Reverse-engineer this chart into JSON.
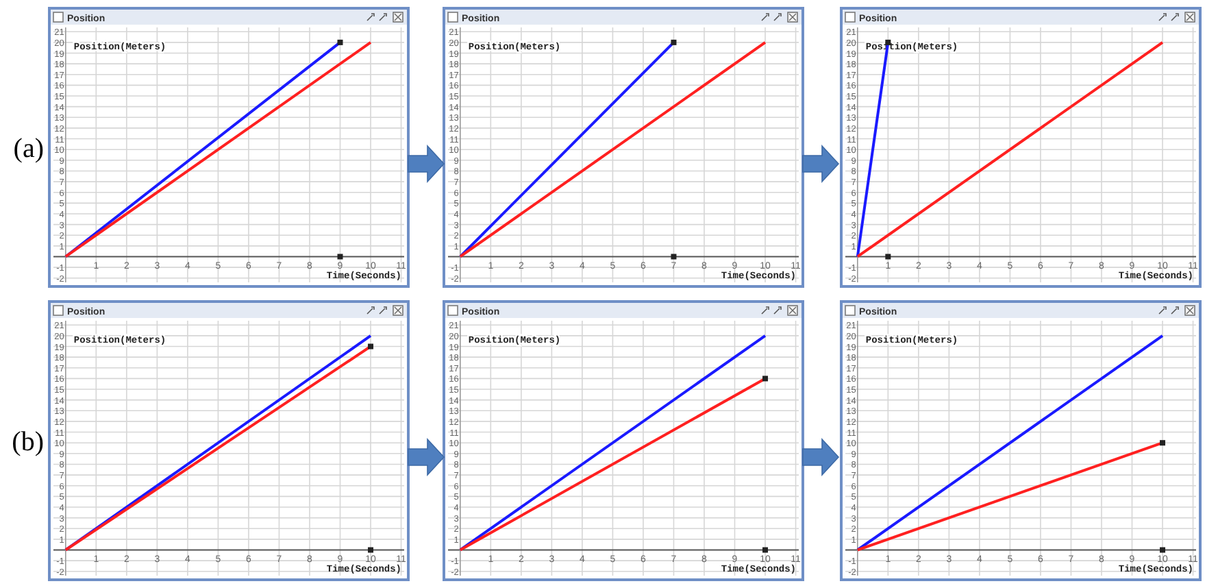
{
  "chart_data": [
    {
      "type": "line",
      "title": "Position",
      "xlabel": "Time(Seconds)",
      "ylabel": "Position(Meters)",
      "annotations": [
        "(a)"
      ],
      "xlim": [
        -0.4,
        11.1
      ],
      "ylim": [
        -2.4,
        21.4
      ],
      "xticks": [
        1,
        2,
        3,
        4,
        5,
        6,
        7,
        8,
        9,
        10,
        11
      ],
      "yticks": [
        -2,
        -1,
        1,
        2,
        3,
        4,
        5,
        6,
        7,
        8,
        9,
        10,
        11,
        12,
        13,
        14,
        15,
        16,
        17,
        18,
        19,
        20,
        21
      ],
      "grid": true,
      "line_style": "solid",
      "series": [
        {
          "type": "line",
          "color": "#1a1aff",
          "x": [
            0,
            9
          ],
          "values": [
            0,
            20
          ],
          "marker": "none"
        },
        {
          "type": "line",
          "color": "#ff2020",
          "x": [
            0,
            10
          ],
          "values": [
            0,
            20
          ],
          "marker": "none"
        },
        {
          "type": "scatter",
          "color": "#222222",
          "x": [
            9,
            9
          ],
          "values": [
            20,
            0
          ],
          "marker": "square"
        }
      ]
    },
    {
      "type": "line",
      "title": "Position",
      "xlabel": "Time(Seconds)",
      "ylabel": "Position(Meters)",
      "xlim": [
        -0.4,
        11.1
      ],
      "ylim": [
        -2.4,
        21.4
      ],
      "xticks": [
        1,
        2,
        3,
        4,
        5,
        6,
        7,
        8,
        9,
        10,
        11
      ],
      "yticks": [
        -2,
        -1,
        1,
        2,
        3,
        4,
        5,
        6,
        7,
        8,
        9,
        10,
        11,
        12,
        13,
        14,
        15,
        16,
        17,
        18,
        19,
        20,
        21
      ],
      "grid": true,
      "line_style": "solid",
      "series": [
        {
          "type": "line",
          "color": "#1a1aff",
          "x": [
            0,
            7
          ],
          "values": [
            0,
            20
          ],
          "marker": "none"
        },
        {
          "type": "line",
          "color": "#ff2020",
          "x": [
            0,
            10
          ],
          "values": [
            0,
            20
          ],
          "marker": "none"
        },
        {
          "type": "scatter",
          "color": "#222222",
          "x": [
            7,
            7
          ],
          "values": [
            20,
            0
          ],
          "marker": "square"
        }
      ]
    },
    {
      "type": "line",
      "title": "Position",
      "xlabel": "Time(Seconds)",
      "ylabel": "Position(Meters)",
      "xlim": [
        -0.4,
        11.1
      ],
      "ylim": [
        -2.4,
        21.4
      ],
      "xticks": [
        1,
        2,
        3,
        4,
        5,
        6,
        7,
        8,
        9,
        10,
        11
      ],
      "yticks": [
        -2,
        -1,
        1,
        2,
        3,
        4,
        5,
        6,
        7,
        8,
        9,
        10,
        11,
        12,
        13,
        14,
        15,
        16,
        17,
        18,
        19,
        20,
        21
      ],
      "grid": true,
      "line_style": "solid",
      "series": [
        {
          "type": "line",
          "color": "#1a1aff",
          "x": [
            0,
            1
          ],
          "values": [
            0,
            20
          ],
          "marker": "none"
        },
        {
          "type": "line",
          "color": "#ff2020",
          "x": [
            0,
            10
          ],
          "values": [
            0,
            20
          ],
          "marker": "none"
        },
        {
          "type": "scatter",
          "color": "#222222",
          "x": [
            1,
            1
          ],
          "values": [
            20,
            0
          ],
          "marker": "square"
        }
      ]
    },
    {
      "type": "line",
      "title": "Position",
      "xlabel": "Time(Seconds)",
      "ylabel": "Position(Meters)",
      "annotations": [
        "(b)"
      ],
      "xlim": [
        -0.4,
        11.1
      ],
      "ylim": [
        -2.4,
        21.4
      ],
      "xticks": [
        1,
        2,
        3,
        4,
        5,
        6,
        7,
        8,
        9,
        10,
        11
      ],
      "yticks": [
        -2,
        -1,
        1,
        2,
        3,
        4,
        5,
        6,
        7,
        8,
        9,
        10,
        11,
        12,
        13,
        14,
        15,
        16,
        17,
        18,
        19,
        20,
        21
      ],
      "grid": true,
      "line_style": "solid",
      "series": [
        {
          "type": "line",
          "color": "#1a1aff",
          "x": [
            0,
            10
          ],
          "values": [
            0,
            20
          ],
          "marker": "none"
        },
        {
          "type": "line",
          "color": "#ff2020",
          "x": [
            0,
            10
          ],
          "values": [
            0,
            19
          ],
          "marker": "none"
        },
        {
          "type": "scatter",
          "color": "#222222",
          "x": [
            10,
            10
          ],
          "values": [
            19,
            0
          ],
          "marker": "square"
        }
      ]
    },
    {
      "type": "line",
      "title": "Position",
      "xlabel": "Time(Seconds)",
      "ylabel": "Position(Meters)",
      "xlim": [
        -0.4,
        11.1
      ],
      "ylim": [
        -2.4,
        21.4
      ],
      "xticks": [
        1,
        2,
        3,
        4,
        5,
        6,
        7,
        8,
        9,
        10,
        11
      ],
      "yticks": [
        -2,
        -1,
        1,
        2,
        3,
        4,
        5,
        6,
        7,
        8,
        9,
        10,
        11,
        12,
        13,
        14,
        15,
        16,
        17,
        18,
        19,
        20,
        21
      ],
      "grid": true,
      "line_style": "solid",
      "series": [
        {
          "type": "line",
          "color": "#1a1aff",
          "x": [
            0,
            10
          ],
          "values": [
            0,
            20
          ],
          "marker": "none"
        },
        {
          "type": "line",
          "color": "#ff2020",
          "x": [
            0,
            10
          ],
          "values": [
            0,
            16
          ],
          "marker": "none"
        },
        {
          "type": "scatter",
          "color": "#222222",
          "x": [
            10,
            10
          ],
          "values": [
            16,
            0
          ],
          "marker": "square"
        }
      ]
    },
    {
      "type": "line",
      "title": "Position",
      "xlabel": "Time(Seconds)",
      "ylabel": "Position(Meters)",
      "xlim": [
        -0.4,
        11.1
      ],
      "ylim": [
        -2.4,
        21.4
      ],
      "xticks": [
        1,
        2,
        3,
        4,
        5,
        6,
        7,
        8,
        9,
        10,
        11
      ],
      "yticks": [
        -2,
        -1,
        1,
        2,
        3,
        4,
        5,
        6,
        7,
        8,
        9,
        10,
        11,
        12,
        13,
        14,
        15,
        16,
        17,
        18,
        19,
        20,
        21
      ],
      "grid": true,
      "line_style": "solid",
      "series": [
        {
          "type": "line",
          "color": "#1a1aff",
          "x": [
            0,
            10
          ],
          "values": [
            0,
            20
          ],
          "marker": "none"
        },
        {
          "type": "line",
          "color": "#ff2020",
          "x": [
            0,
            10
          ],
          "values": [
            0,
            10
          ],
          "marker": "none"
        },
        {
          "type": "scatter",
          "color": "#222222",
          "x": [
            10,
            10
          ],
          "values": [
            10,
            0
          ],
          "marker": "square"
        }
      ]
    }
  ]
}
